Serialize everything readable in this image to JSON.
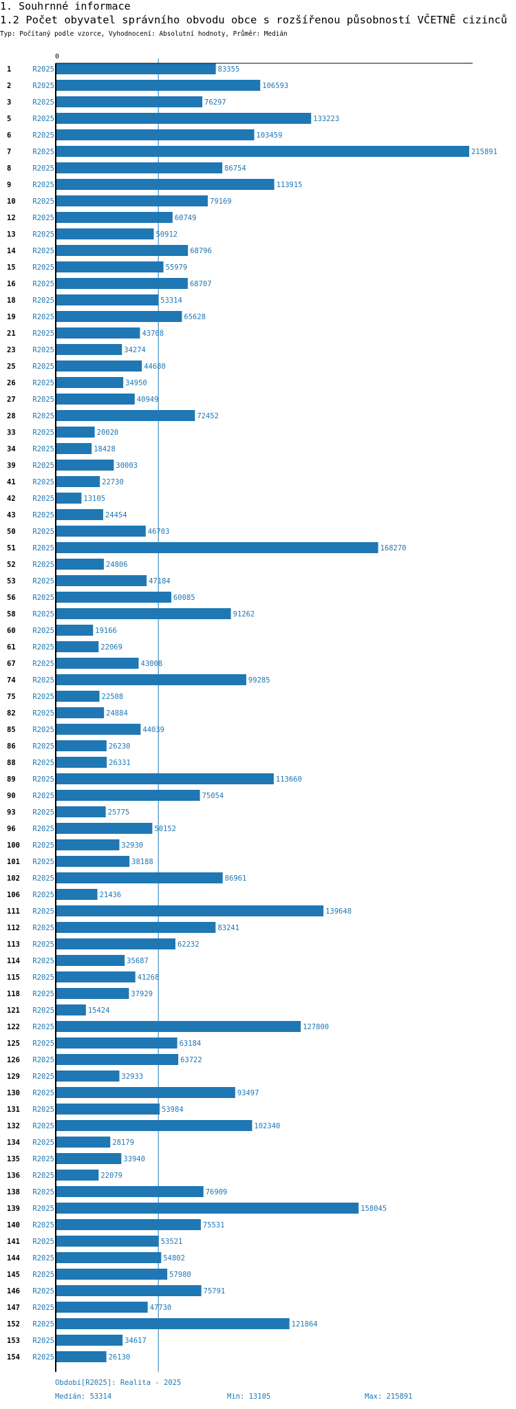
{
  "header": {
    "section": "1. Souhrnné informace",
    "title": "1.2 Počet obyvatel správního obvodu obce s rozšířenou působností VČETNĚ cizinců",
    "subtitle": "Typ: Počítaný podle vzorce, Vyhodnocení: Absolutní hodnoty, Průměr: Medián"
  },
  "colors": {
    "bar": "#1f77b4",
    "median": "#1f77b4",
    "axis": "#000000"
  },
  "chart_data": {
    "type": "bar",
    "orientation": "horizontal",
    "xlim": [
      0,
      215891
    ],
    "axis_zero_label": "0",
    "series_label": "R2025",
    "categories": [
      "1",
      "2",
      "3",
      "5",
      "6",
      "7",
      "8",
      "9",
      "10",
      "12",
      "13",
      "14",
      "15",
      "16",
      "18",
      "19",
      "21",
      "23",
      "25",
      "26",
      "27",
      "28",
      "33",
      "34",
      "39",
      "41",
      "42",
      "43",
      "50",
      "51",
      "52",
      "53",
      "56",
      "58",
      "60",
      "61",
      "67",
      "74",
      "75",
      "82",
      "85",
      "86",
      "88",
      "89",
      "90",
      "93",
      "96",
      "100",
      "101",
      "102",
      "106",
      "111",
      "112",
      "113",
      "114",
      "115",
      "118",
      "121",
      "122",
      "125",
      "126",
      "129",
      "130",
      "131",
      "132",
      "134",
      "135",
      "136",
      "138",
      "139",
      "140",
      "141",
      "144",
      "145",
      "146",
      "147",
      "152",
      "153",
      "154"
    ],
    "values": [
      83355,
      106593,
      76297,
      133223,
      103459,
      215891,
      86754,
      113915,
      79169,
      60749,
      50912,
      68796,
      55979,
      68707,
      53314,
      65628,
      43708,
      34274,
      44680,
      34950,
      40949,
      72452,
      20020,
      18428,
      30003,
      22730,
      13105,
      24454,
      46703,
      168270,
      24806,
      47184,
      60085,
      91262,
      19166,
      22069,
      43008,
      99285,
      22508,
      24884,
      44039,
      26230,
      26331,
      113660,
      75054,
      25775,
      50152,
      32930,
      38188,
      86961,
      21436,
      139648,
      83241,
      62232,
      35687,
      41268,
      37929,
      15424,
      127800,
      63184,
      63722,
      32933,
      93497,
      53984,
      102340,
      28179,
      33940,
      22079,
      76909,
      158045,
      75531,
      53521,
      54802,
      57980,
      75791,
      47730,
      121864,
      34617,
      26130
    ],
    "median": 53314
  },
  "footer": {
    "period": "Období[R2025]: Realita - 2025",
    "median": "Medián: 53314",
    "min": "Min: 13105",
    "max": "Max: 215891"
  }
}
